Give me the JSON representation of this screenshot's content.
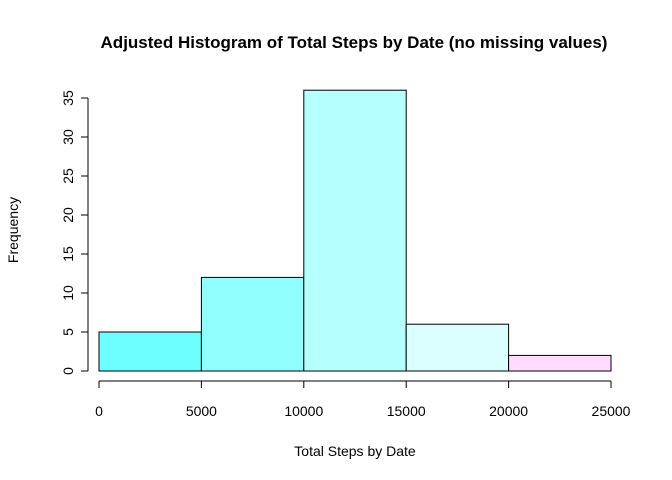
{
  "chart_data": {
    "type": "bar",
    "title": "Adjusted Histogram of Total Steps by Date (no missing values)",
    "xlabel": "Total Steps by Date",
    "ylabel": "Frequency",
    "bins": [
      {
        "from": 0,
        "to": 5000,
        "count": 5,
        "color": "#6dffff"
      },
      {
        "from": 5000,
        "to": 10000,
        "count": 12,
        "color": "#92ffff"
      },
      {
        "from": 10000,
        "to": 15000,
        "count": 36,
        "color": "#b6ffff"
      },
      {
        "from": 15000,
        "to": 20000,
        "count": 6,
        "color": "#dbffff"
      },
      {
        "from": 20000,
        "to": 25000,
        "count": 2,
        "color": "#ffdbff"
      }
    ],
    "xlim": [
      0,
      25000
    ],
    "ylim": [
      0,
      36
    ],
    "x_ticks": [
      "0",
      "5000",
      "10000",
      "15000",
      "20000",
      "25000"
    ],
    "y_ticks": [
      "0",
      "5",
      "10",
      "15",
      "20",
      "25",
      "30",
      "35"
    ],
    "grid": false,
    "legend": "none"
  }
}
